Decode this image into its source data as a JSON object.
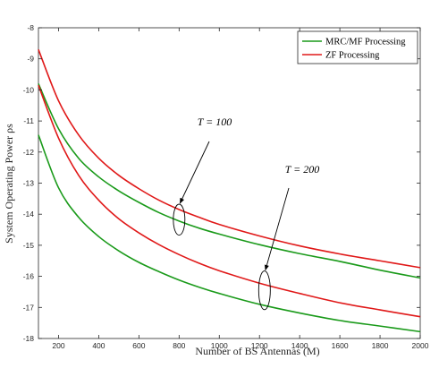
{
  "chart_data": {
    "type": "line",
    "title": "",
    "xlabel": "Number of BS Antennas (M)",
    "ylabel": "System Operating Power ρs",
    "xlim": [
      100,
      2000
    ],
    "ylim": [
      -18,
      -8
    ],
    "xticks": [
      200,
      400,
      600,
      800,
      1000,
      1200,
      1400,
      1600,
      1800,
      2000
    ],
    "yticks": [
      -18,
      -17,
      -16,
      -15,
      -14,
      -13,
      -12,
      -11,
      -10,
      -9,
      -8
    ],
    "grid": false,
    "legend_position": "top-right",
    "legend": [
      {
        "label": "MRC/MF Processing",
        "color": "#1a9a1a"
      },
      {
        "label": "ZF Processing",
        "color": "#e01818"
      }
    ],
    "series": [
      {
        "legend": "MRC/MF Processing",
        "group": "T = 100",
        "color": "#1a9a1a",
        "x": [
          100,
          200,
          300,
          400,
          500,
          600,
          700,
          800,
          900,
          1000,
          1200,
          1400,
          1600,
          1800,
          2000
        ],
        "y": [
          -9.8,
          -11.25,
          -12.2,
          -12.8,
          -13.25,
          -13.62,
          -13.95,
          -14.22,
          -14.45,
          -14.64,
          -14.98,
          -15.27,
          -15.52,
          -15.8,
          -16.05
        ]
      },
      {
        "legend": "ZF Processing",
        "group": "T = 100",
        "color": "#e01818",
        "x": [
          100,
          200,
          300,
          400,
          500,
          600,
          700,
          800,
          900,
          1000,
          1200,
          1400,
          1600,
          1800,
          2000
        ],
        "y": [
          -8.7,
          -10.35,
          -11.45,
          -12.2,
          -12.75,
          -13.18,
          -13.55,
          -13.85,
          -14.1,
          -14.33,
          -14.7,
          -15.02,
          -15.28,
          -15.5,
          -15.72
        ]
      },
      {
        "legend": "MRC/MF Processing",
        "group": "T = 200",
        "color": "#1a9a1a",
        "x": [
          100,
          200,
          300,
          400,
          500,
          600,
          700,
          800,
          900,
          1000,
          1200,
          1400,
          1600,
          1800,
          2000
        ],
        "y": [
          -11.45,
          -13.15,
          -14.1,
          -14.72,
          -15.18,
          -15.55,
          -15.85,
          -16.12,
          -16.35,
          -16.55,
          -16.9,
          -17.18,
          -17.42,
          -17.6,
          -17.78
        ]
      },
      {
        "legend": "ZF Processing",
        "group": "T = 200",
        "color": "#e01818",
        "x": [
          100,
          200,
          300,
          400,
          500,
          600,
          700,
          800,
          900,
          1000,
          1200,
          1400,
          1600,
          1800,
          2000
        ],
        "y": [
          -9.85,
          -11.55,
          -12.75,
          -13.55,
          -14.15,
          -14.6,
          -14.98,
          -15.3,
          -15.58,
          -15.82,
          -16.22,
          -16.55,
          -16.85,
          -17.08,
          -17.3
        ]
      }
    ],
    "annotations": [
      {
        "text": "T = 100",
        "target_x": 800,
        "target_y_range": [
          -13.85,
          -14.5
        ]
      },
      {
        "text": "T = 200",
        "target_x": 1225,
        "target_y_range": [
          -16.0,
          -16.9
        ]
      }
    ]
  }
}
